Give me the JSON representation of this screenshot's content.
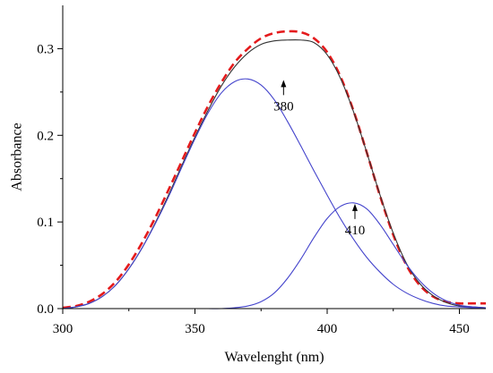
{
  "chart_data": {
    "type": "line",
    "title": "",
    "xlabel": "Wavelenght (nm)",
    "ylabel": "Absorbance",
    "xlim": [
      300,
      460
    ],
    "ylim": [
      0.0,
      0.35
    ],
    "x_ticks": [
      300,
      350,
      400,
      450
    ],
    "x_tick_labels": [
      "300",
      "350",
      "400",
      "450"
    ],
    "y_ticks": [
      0.0,
      0.1,
      0.2,
      0.3
    ],
    "y_tick_labels": [
      "0.0",
      "0.1",
      "0.2",
      "0.3"
    ],
    "grid": false,
    "legend": "none",
    "x": [
      300,
      305,
      310,
      315,
      320,
      325,
      330,
      335,
      340,
      345,
      350,
      355,
      360,
      365,
      370,
      375,
      380,
      385,
      390,
      395,
      400,
      405,
      410,
      415,
      420,
      425,
      430,
      435,
      440,
      445,
      450,
      455,
      460
    ],
    "series": [
      {
        "color": "#e41a1c",
        "style": "dashed",
        "values": [
          0.001,
          0.003,
          0.008,
          0.017,
          0.031,
          0.051,
          0.076,
          0.105,
          0.137,
          0.17,
          0.203,
          0.234,
          0.261,
          0.284,
          0.3,
          0.312,
          0.318,
          0.32,
          0.319,
          0.312,
          0.296,
          0.268,
          0.228,
          0.18,
          0.13,
          0.085,
          0.05,
          0.027,
          0.014,
          0.008,
          0.006,
          0.006,
          0.006
        ]
      },
      {
        "color": "#333333",
        "style": "solid",
        "values": [
          0.0,
          0.002,
          0.006,
          0.014,
          0.027,
          0.046,
          0.07,
          0.099,
          0.131,
          0.165,
          0.198,
          0.229,
          0.257,
          0.279,
          0.295,
          0.305,
          0.309,
          0.31,
          0.31,
          0.307,
          0.293,
          0.266,
          0.227,
          0.18,
          0.131,
          0.087,
          0.052,
          0.029,
          0.015,
          0.007,
          0.003,
          0.002,
          0.001
        ]
      },
      {
        "color": "#4444cc",
        "style": "solid",
        "values": [
          0.0,
          0.002,
          0.006,
          0.014,
          0.027,
          0.046,
          0.07,
          0.098,
          0.129,
          0.163,
          0.196,
          0.226,
          0.249,
          0.262,
          0.265,
          0.258,
          0.241,
          0.216,
          0.188,
          0.159,
          0.131,
          0.104,
          0.08,
          0.059,
          0.042,
          0.028,
          0.018,
          0.011,
          0.006,
          0.003,
          0.002,
          0.001,
          0.0
        ]
      },
      {
        "color": "#4444cc",
        "style": "solid",
        "values": [
          0.0,
          0.0,
          0.0,
          0.0,
          0.0,
          0.0,
          0.0,
          0.0,
          0.0,
          0.0,
          0.0,
          0.0,
          0.0,
          0.001,
          0.003,
          0.008,
          0.018,
          0.035,
          0.057,
          0.082,
          0.104,
          0.118,
          0.122,
          0.115,
          0.097,
          0.074,
          0.051,
          0.032,
          0.018,
          0.009,
          0.004,
          0.002,
          0.001
        ]
      }
    ],
    "annotations": [
      {
        "text": "380",
        "x": 383.5,
        "y": 0.265
      },
      {
        "text": "410",
        "x": 410.5,
        "y": 0.122
      }
    ]
  }
}
